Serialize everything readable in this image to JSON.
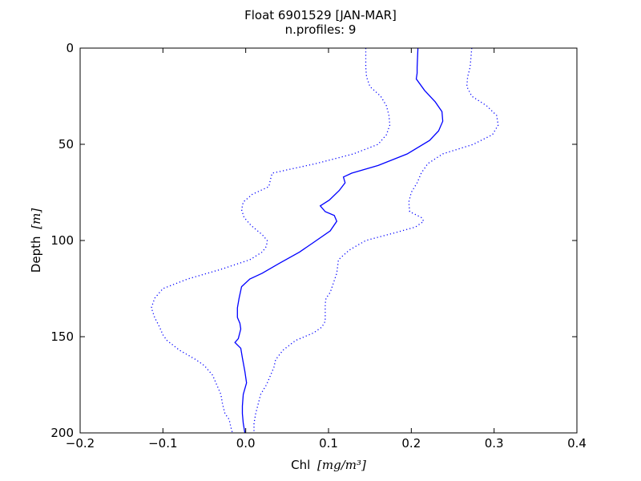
{
  "chart_data": {
    "type": "line",
    "title": "Float 6901529 [JAN-MAR]",
    "subtitle": "n.profiles: 9",
    "xlabel": "Chl",
    "xlabel_unit": "[mg/m³]",
    "ylabel": "Depth",
    "ylabel_unit": "[m]",
    "xlim": [
      -0.2,
      0.4
    ],
    "ylim": [
      200,
      0
    ],
    "y_inverted": true,
    "xticks": [
      -0.2,
      -0.1,
      0.0,
      0.1,
      0.2,
      0.3,
      0.4
    ],
    "xtick_labels": [
      "−0.2",
      "−0.1",
      "0.0",
      "0.1",
      "0.2",
      "0.3",
      "0.4"
    ],
    "yticks": [
      0,
      50,
      100,
      150,
      200
    ],
    "ytick_labels": [
      "0",
      "50",
      "100",
      "150",
      "200"
    ],
    "grid": false,
    "colors": {
      "series": "#0000ff",
      "axes": "#000000"
    },
    "series": [
      {
        "role": "mean",
        "style": "solid",
        "x": [
          0.208,
          0.207,
          0.207,
          0.206,
          0.216,
          0.229,
          0.237,
          0.238,
          0.233,
          0.222,
          0.195,
          0.16,
          0.128,
          0.118,
          0.12,
          0.113,
          0.101,
          0.09,
          0.096,
          0.107,
          0.11,
          0.102,
          0.082,
          0.065,
          0.04,
          0.02,
          0.005,
          -0.005,
          -0.008,
          -0.01,
          -0.01,
          -0.007,
          -0.006,
          -0.009,
          -0.013,
          -0.006,
          -0.004,
          -0.001,
          0.001,
          -0.003,
          -0.004,
          -0.004,
          -0.003,
          -0.001
        ],
        "y": [
          0,
          10,
          13,
          16,
          22,
          28,
          33,
          38,
          43,
          48,
          55,
          61,
          65,
          67,
          70,
          74,
          79,
          82,
          85,
          87,
          90,
          95,
          101,
          106,
          112,
          117,
          120,
          124,
          130,
          135,
          140,
          143,
          146,
          151,
          153,
          156,
          161,
          168,
          174,
          180,
          186,
          190,
          195,
          200
        ]
      },
      {
        "role": "upper bound",
        "style": "dotted",
        "x": [
          0.273,
          0.271,
          0.268,
          0.267,
          0.273,
          0.291,
          0.303,
          0.305,
          0.298,
          0.275,
          0.238,
          0.22,
          0.212,
          0.207,
          0.2,
          0.197,
          0.198,
          0.212,
          0.215,
          0.205,
          0.18,
          0.145,
          0.125,
          0.112,
          0.11,
          0.106,
          0.102,
          0.097,
          0.096,
          0.096,
          0.096,
          0.092,
          0.082,
          0.06,
          0.045,
          0.036,
          0.034,
          0.03,
          0.025,
          0.018,
          0.015,
          0.012,
          0.01,
          0.01,
          0.01
        ],
        "y": [
          0,
          10,
          15,
          20,
          25,
          30,
          35,
          40,
          45,
          50,
          55,
          60,
          65,
          70,
          75,
          80,
          85,
          88,
          90,
          93,
          96,
          100,
          105,
          110,
          117,
          122,
          127,
          130,
          133,
          138,
          142,
          145,
          148,
          152,
          157,
          162,
          166,
          170,
          175,
          180,
          185,
          190,
          195,
          198,
          200
        ]
      },
      {
        "role": "lower bound",
        "style": "dotted",
        "x": [
          0.145,
          0.145,
          0.146,
          0.15,
          0.163,
          0.17,
          0.173,
          0.174,
          0.17,
          0.16,
          0.13,
          0.085,
          0.032,
          0.03,
          0.028,
          0.008,
          -0.003,
          -0.005,
          -0.002,
          0.006,
          0.02,
          0.026,
          0.025,
          0.02,
          0.005,
          -0.03,
          -0.07,
          -0.1,
          -0.11,
          -0.114,
          -0.11,
          -0.104,
          -0.1,
          -0.095,
          -0.08,
          -0.06,
          -0.05,
          -0.04,
          -0.035,
          -0.03,
          -0.028,
          -0.025,
          -0.02,
          -0.018,
          -0.016
        ],
        "y": [
          0,
          10,
          15,
          20,
          25,
          30,
          35,
          40,
          45,
          50,
          55,
          60,
          65,
          68,
          72,
          76,
          80,
          84,
          88,
          92,
          97,
          100,
          103,
          106,
          110,
          115,
          120,
          125,
          130,
          135,
          140,
          145,
          149,
          152,
          157,
          162,
          165,
          170,
          175,
          180,
          185,
          190,
          193,
          197,
          200
        ]
      }
    ]
  }
}
